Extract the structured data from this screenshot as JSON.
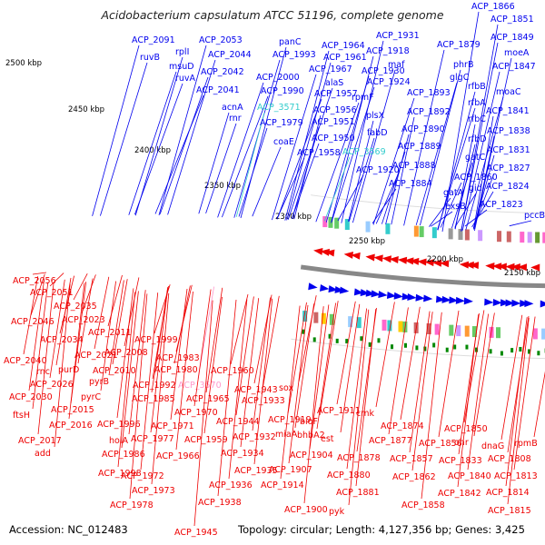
{
  "title": "Acidobacterium capsulatum ATCC 51196, complete genome",
  "footer": {
    "accession": "Accession: NC_012483",
    "summary": "Topology: circular; Length: 4,127,356 bp; Genes: 3,425"
  },
  "colors": {
    "forward": "#0000ee",
    "reverse": "#ee0000",
    "rna_forward": "#33cccc",
    "rna_reverse": "#ff99cc",
    "backbone": "#888888",
    "tick": "#000000",
    "gc_mark": "#008800"
  },
  "axis_ticks": [
    "2500 kbp",
    "2450 kbp",
    "2400 kbp",
    "2350 kbp",
    "2300 kbp",
    "2250 kbp",
    "2200 kbp",
    "2150 kbp"
  ],
  "top_labels": [
    "ACP_1866",
    "ACP_1851",
    "ACP_1849",
    "moeA",
    "ACP_1847",
    "rfbB",
    "moaC",
    "rfbA",
    "ACP_1841",
    "rfbC",
    "ACP_1838",
    "rfbD",
    "ACP_1831",
    "gatC",
    "ACP_1827",
    "ACP_1860",
    "gid",
    "ACP_1824",
    "gatA",
    "exsB",
    "ACP_1823",
    "pccB",
    "ACP_1879",
    "phrB",
    "glgC",
    "ACP_1893",
    "ACP_1892",
    "ACP_1890",
    "ACP_1889",
    "ACP_1888",
    "ACP_1884",
    "ACP_1931",
    "ACP_1918",
    "maf",
    "ACP_1930",
    "ACP_1924",
    "rpmF",
    "plsX",
    "fabD",
    "ACP_3569",
    "ACP_1920",
    "ACP_1964",
    "ACP_1961",
    "ACP_1967",
    "alaS",
    "ACP_1957",
    "ACP_1956",
    "ACP_1951",
    "ACP_1950",
    "ACP_1958",
    "panC",
    "ACP_1993",
    "ACP_2000",
    "ACP_1990",
    "ACP_3571",
    "ACP_1979",
    "coaE",
    "ACP_2091",
    "ruvB",
    "rplI",
    "ACP_2053",
    "msuD",
    "ACP_2044",
    "ruvA",
    "ACP_2042",
    "ACP_2041",
    "acnA",
    "rnr"
  ],
  "bottom_labels": [
    "ACP_2056",
    "ACP_2051",
    "ACP_2035",
    "ACP_2046",
    "ACP_2023",
    "ACP_2011",
    "ACP_2034",
    "ACP_2040",
    "ACP_2021",
    "ACP_2008",
    "rnc",
    "purD",
    "ACP_2010",
    "ACP_2026",
    "pyrB",
    "ACP_2030",
    "pyrC",
    "ACP_2015",
    "ftsH",
    "ACP_2016",
    "ACP_2017",
    "add",
    "ACP_1999",
    "ACP_1983",
    "ACP_1980",
    "ACP_1992",
    "ACP_3570",
    "ACP_1985",
    "ACP_1965",
    "ACP_1996",
    "ACP_1971",
    "ACP_1970",
    "holA",
    "ACP_1977",
    "ACP_1986",
    "ACP_1966",
    "ACP_1998",
    "ACP_1972",
    "ACP_1973",
    "ACP_1978",
    "ACP_1960",
    "ACP_1943",
    "sox",
    "ACP_1933",
    "ACP_1944",
    "ACP_1959",
    "ACP_1932",
    "ACP_1934",
    "ACP_1935",
    "ACP_1936",
    "ACP_1938",
    "ACP_1945",
    "bioF",
    "ACP_1911",
    "cmk",
    "ACP_1919",
    "bhbA2",
    "miaA",
    "est",
    "ACP_1904",
    "ACP_1907",
    "ACP_1914",
    "ACP_1900",
    "ACP_1874",
    "ACP_1877",
    "ACP_1878",
    "ACP_1880",
    "ACP_1881",
    "pyk",
    "ACP_1850",
    "ACP_1856",
    "ACP_1857",
    "ACP_1862",
    "ACP_1858",
    "ohr",
    "ACP_1833",
    "ACP_1840",
    "ACP_1842",
    "dnaG",
    "rpmB",
    "ACP_1808",
    "ACP_1813",
    "ACP_1814",
    "ACP_1815"
  ]
}
